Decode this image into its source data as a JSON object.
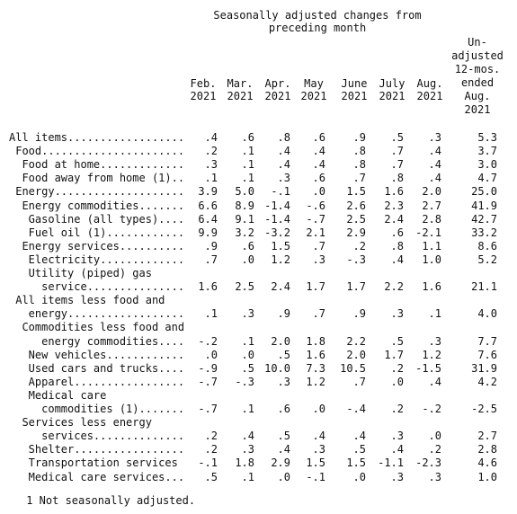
{
  "header": {
    "title_line1": "Seasonally adjusted changes from",
    "title_line2": "preceding month",
    "columns": [
      {
        "l1": "Feb.",
        "l2": "2021"
      },
      {
        "l1": "Mar.",
        "l2": "2021"
      },
      {
        "l1": "Apr.",
        "l2": "2021"
      },
      {
        "l1": "May",
        "l2": "2021"
      },
      {
        "l1": "June",
        "l2": "2021"
      },
      {
        "l1": "July",
        "l2": "2021"
      },
      {
        "l1": "Aug.",
        "l2": "2021"
      }
    ],
    "unadjusted": [
      "Un-",
      "adjusted",
      "12-mos.",
      "ended",
      "Aug.",
      "2021"
    ]
  },
  "rows": [
    {
      "label": "All items..................",
      "v": [
        ".4",
        ".6",
        ".8",
        ".6",
        ".9",
        ".5",
        ".3",
        "5.3"
      ]
    },
    {
      "label": " Food......................",
      "v": [
        ".2",
        ".1",
        ".4",
        ".4",
        ".8",
        ".7",
        ".4",
        "3.7"
      ]
    },
    {
      "label": "  Food at home.............",
      "v": [
        ".3",
        ".1",
        ".4",
        ".4",
        ".8",
        ".7",
        ".4",
        "3.0"
      ]
    },
    {
      "label": "  Food away from home (1)..",
      "v": [
        ".1",
        ".1",
        ".3",
        ".6",
        ".7",
        ".8",
        ".4",
        "4.7"
      ]
    },
    {
      "label": " Energy....................",
      "v": [
        "3.9",
        "5.0",
        "-.1",
        ".0",
        "1.5",
        "1.6",
        "2.0",
        "25.0"
      ]
    },
    {
      "label": "  Energy commodities.......",
      "v": [
        "6.6",
        "8.9",
        "-1.4",
        "-.6",
        "2.6",
        "2.3",
        "2.7",
        "41.9"
      ]
    },
    {
      "label": "   Gasoline (all types)....",
      "v": [
        "6.4",
        "9.1",
        "-1.4",
        "-.7",
        "2.5",
        "2.4",
        "2.8",
        "42.7"
      ]
    },
    {
      "label": "   Fuel oil (1)............",
      "v": [
        "9.9",
        "3.2",
        "-3.2",
        "2.1",
        "2.9",
        ".6",
        "-2.1",
        "33.2"
      ]
    },
    {
      "label": "  Energy services..........",
      "v": [
        ".9",
        ".6",
        "1.5",
        ".7",
        ".2",
        ".8",
        "1.1",
        "8.6"
      ]
    },
    {
      "label": "   Electricity.............",
      "v": [
        ".7",
        ".0",
        "1.2",
        ".3",
        "-.3",
        ".4",
        "1.0",
        "5.2"
      ]
    },
    {
      "label": "   Utility (piped) gas",
      "v": []
    },
    {
      "label": "     service...............",
      "v": [
        "1.6",
        "2.5",
        "2.4",
        "1.7",
        "1.7",
        "2.2",
        "1.6",
        "21.1"
      ]
    },
    {
      "label": " All items less food and",
      "v": []
    },
    {
      "label": "   energy..................",
      "v": [
        ".1",
        ".3",
        ".9",
        ".7",
        ".9",
        ".3",
        ".1",
        "4.0"
      ]
    },
    {
      "label": "  Commodities less food and",
      "v": []
    },
    {
      "label": "     energy commodities....",
      "v": [
        "-.2",
        ".1",
        "2.0",
        "1.8",
        "2.2",
        ".5",
        ".3",
        "7.7"
      ]
    },
    {
      "label": "   New vehicles............",
      "v": [
        ".0",
        ".0",
        ".5",
        "1.6",
        "2.0",
        "1.7",
        "1.2",
        "7.6"
      ]
    },
    {
      "label": "   Used cars and trucks....",
      "v": [
        "-.9",
        ".5",
        "10.0",
        "7.3",
        "10.5",
        ".2",
        "-1.5",
        "31.9"
      ]
    },
    {
      "label": "   Apparel.................",
      "v": [
        "-.7",
        "-.3",
        ".3",
        "1.2",
        ".7",
        ".0",
        ".4",
        "4.2"
      ]
    },
    {
      "label": "   Medical care",
      "v": []
    },
    {
      "label": "     commodities (1).......",
      "v": [
        "-.7",
        ".1",
        ".6",
        ".0",
        "-.4",
        ".2",
        "-.2",
        "-2.5"
      ]
    },
    {
      "label": "  Services less energy",
      "v": []
    },
    {
      "label": "     services..............",
      "v": [
        ".2",
        ".4",
        ".5",
        ".4",
        ".4",
        ".3",
        ".0",
        "2.7"
      ]
    },
    {
      "label": "   Shelter.................",
      "v": [
        ".2",
        ".3",
        ".4",
        ".3",
        ".5",
        ".4",
        ".2",
        "2.8"
      ]
    },
    {
      "label": "   Transportation services",
      "v": [
        "-.1",
        "1.8",
        "2.9",
        "1.5",
        "1.5",
        "-1.1",
        "-2.3",
        "4.6"
      ]
    },
    {
      "label": "   Medical care services...",
      "v": [
        ".5",
        ".1",
        ".0",
        "-.1",
        ".0",
        ".3",
        ".3",
        "1.0"
      ]
    }
  ],
  "footnote": " 1 Not seasonally adjusted."
}
